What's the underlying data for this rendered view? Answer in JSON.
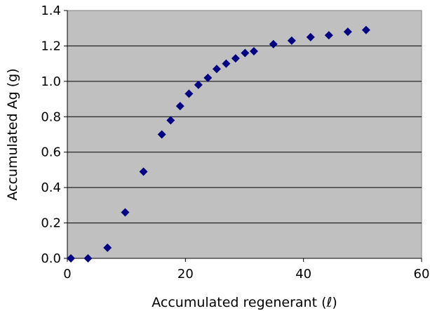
{
  "chart_data": {
    "type": "scatter",
    "title": "",
    "xlabel": "Accumulated regenerant (ℓ)",
    "ylabel": "Accumulated Ag (g)",
    "xlim": [
      0,
      60
    ],
    "ylim": [
      0,
      1.4
    ],
    "xticks": [
      0,
      20,
      40,
      60
    ],
    "yticks": [
      0,
      0.2,
      0.4,
      0.6,
      0.8,
      1.0,
      1.2,
      1.4
    ],
    "xtick_labels": [
      "0",
      "20",
      "40",
      "60"
    ],
    "ytick_labels": [
      "0.0",
      "0.2",
      "0.4",
      "0.6",
      "0.8",
      "1.0",
      "1.2",
      "1.4"
    ],
    "grid": "horizontal",
    "plot_background": "#c0c0c0",
    "marker": "diamond",
    "marker_color": "#000080",
    "series": [
      {
        "x": [
          0.6,
          3.5,
          6.8,
          9.8,
          12.9,
          16.0,
          17.5,
          19.1,
          20.6,
          22.2,
          23.8,
          25.3,
          26.9,
          28.5,
          30.1,
          31.6,
          34.9,
          38.0,
          41.2,
          44.3,
          47.5,
          50.6
        ],
        "y": [
          0.0,
          0.0,
          0.06,
          0.26,
          0.49,
          0.7,
          0.78,
          0.86,
          0.93,
          0.98,
          1.02,
          1.07,
          1.1,
          1.13,
          1.16,
          1.17,
          1.21,
          1.23,
          1.25,
          1.26,
          1.28,
          1.29
        ]
      }
    ]
  }
}
